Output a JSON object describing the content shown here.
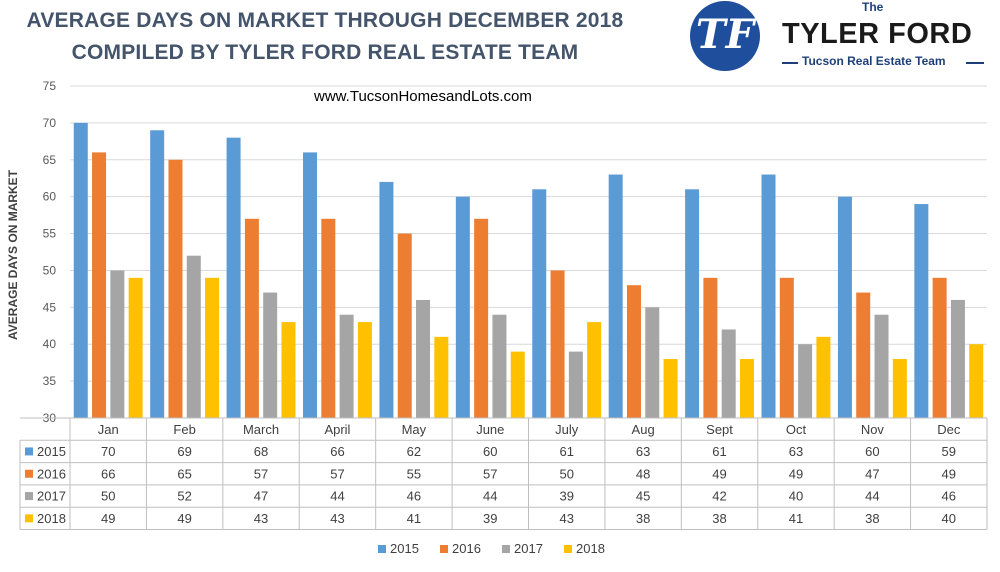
{
  "header": {
    "title_line1": "AVERAGE DAYS ON MARKET THROUGH DECEMBER 2018",
    "title_line2": "COMPILED BY TYLER FORD REAL ESTATE TEAM",
    "website": "www.TucsonHomesandLots.com"
  },
  "logo": {
    "the": "The",
    "name": "TYLER FORD",
    "tagline": "Tucson Real Estate Team",
    "mark": "TF",
    "color": "#1F4E9C"
  },
  "chart_data": {
    "type": "bar",
    "title": "AVERAGE DAYS ON MARKET THROUGH DECEMBER 2018",
    "ylabel": "AVERAGE DAYS ON MARKET",
    "xlabel": "",
    "ylim": [
      30,
      75
    ],
    "yticks": [
      "30",
      "35",
      "40",
      "45",
      "50",
      "55",
      "60",
      "65",
      "70",
      "75"
    ],
    "grid": true,
    "legend": "bottom",
    "data_table": true,
    "categories": [
      "Jan",
      "Feb",
      "March",
      "April",
      "May",
      "June",
      "July",
      "Aug",
      "Sept",
      "Oct",
      "Nov",
      "Dec"
    ],
    "series": [
      {
        "name": "2015",
        "color": "#5B9BD5",
        "values": [
          70,
          69,
          68,
          66,
          62,
          60,
          61,
          63,
          61,
          63,
          60,
          59
        ]
      },
      {
        "name": "2016",
        "color": "#ED7D31",
        "values": [
          66,
          65,
          57,
          57,
          55,
          57,
          50,
          48,
          49,
          49,
          47,
          49
        ]
      },
      {
        "name": "2017",
        "color": "#A5A5A5",
        "values": [
          50,
          52,
          47,
          44,
          46,
          44,
          39,
          45,
          42,
          40,
          44,
          46
        ]
      },
      {
        "name": "2018",
        "color": "#FFC000",
        "values": [
          49,
          49,
          43,
          43,
          41,
          39,
          43,
          38,
          38,
          41,
          38,
          40
        ]
      }
    ]
  }
}
